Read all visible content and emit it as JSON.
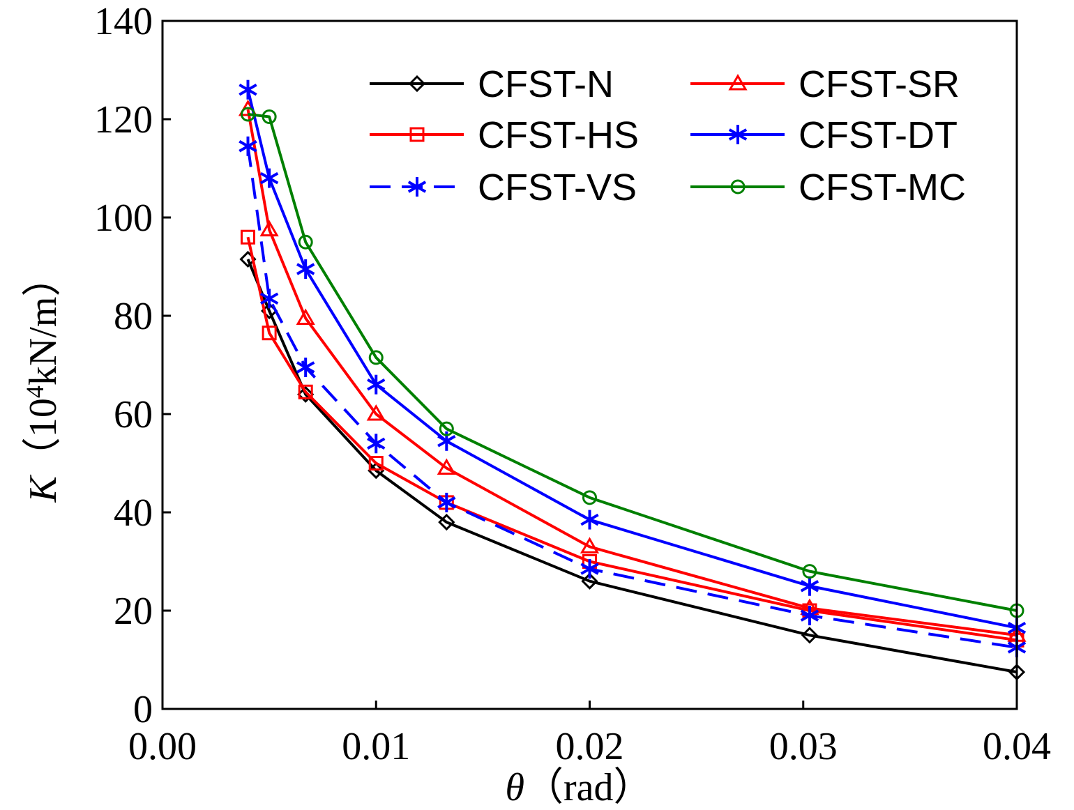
{
  "chart_data": {
    "type": "line",
    "title": "",
    "xlabel": {
      "symbol": "θ",
      "unit": "（rad）"
    },
    "ylabel": {
      "symbol": "K",
      "unit_prefix": "（10",
      "unit_exp": "4",
      "unit_suffix": "kN/m）"
    },
    "xlim": [
      0,
      0.04
    ],
    "ylim": [
      0,
      140
    ],
    "xticks": [
      0,
      0.01,
      0.02,
      0.03,
      0.04
    ],
    "xtick_labels": [
      "0.00",
      "0.01",
      "0.02",
      "0.03",
      "0.04"
    ],
    "yticks": [
      0,
      20,
      40,
      60,
      80,
      100,
      120,
      140
    ],
    "ytick_labels": [
      "0",
      "20",
      "40",
      "60",
      "80",
      "100",
      "120",
      "140"
    ],
    "grid": false,
    "legend_position": "top-right",
    "series": [
      {
        "name": "CFST-N",
        "color": "#000000",
        "dash": false,
        "marker": "diamond",
        "x": [
          0.004,
          0.005,
          0.0067,
          0.01,
          0.0133,
          0.02,
          0.0303,
          0.04
        ],
        "y": [
          91.5,
          81,
          64,
          48.5,
          38,
          26,
          15,
          7.5
        ]
      },
      {
        "name": "CFST-SR",
        "color": "#ff0000",
        "dash": false,
        "marker": "triangle",
        "x": [
          0.004,
          0.005,
          0.0067,
          0.01,
          0.0133,
          0.02,
          0.0303,
          0.04
        ],
        "y": [
          122,
          97.5,
          79.5,
          60,
          49,
          33,
          20.5,
          15
        ]
      },
      {
        "name": "CFST-HS",
        "color": "#ff0000",
        "dash": false,
        "marker": "square",
        "x": [
          0.004,
          0.005,
          0.0067,
          0.01,
          0.0133,
          0.02,
          0.0303,
          0.04
        ],
        "y": [
          96,
          76.5,
          64.5,
          50,
          42,
          30,
          20,
          14
        ]
      },
      {
        "name": "CFST-DT",
        "color": "#0000ff",
        "dash": false,
        "marker": "asterisk",
        "x": [
          0.004,
          0.005,
          0.0067,
          0.01,
          0.0133,
          0.02,
          0.0303,
          0.04
        ],
        "y": [
          126,
          108,
          89.5,
          66,
          54.5,
          38.5,
          25,
          16.5
        ]
      },
      {
        "name": "CFST-VS",
        "color": "#0000ff",
        "dash": true,
        "marker": "asterisk",
        "x": [
          0.004,
          0.005,
          0.0067,
          0.01,
          0.0133,
          0.02,
          0.0303,
          0.04
        ],
        "y": [
          114.5,
          83.5,
          69.5,
          54,
          42,
          28.5,
          19,
          12.5
        ]
      },
      {
        "name": "CFST-MC",
        "color": "#008000",
        "dash": false,
        "marker": "circle",
        "x": [
          0.004,
          0.005,
          0.0067,
          0.01,
          0.0133,
          0.02,
          0.0303,
          0.04
        ],
        "y": [
          121,
          120.5,
          95,
          71.5,
          57,
          43,
          28,
          20
        ]
      }
    ]
  }
}
